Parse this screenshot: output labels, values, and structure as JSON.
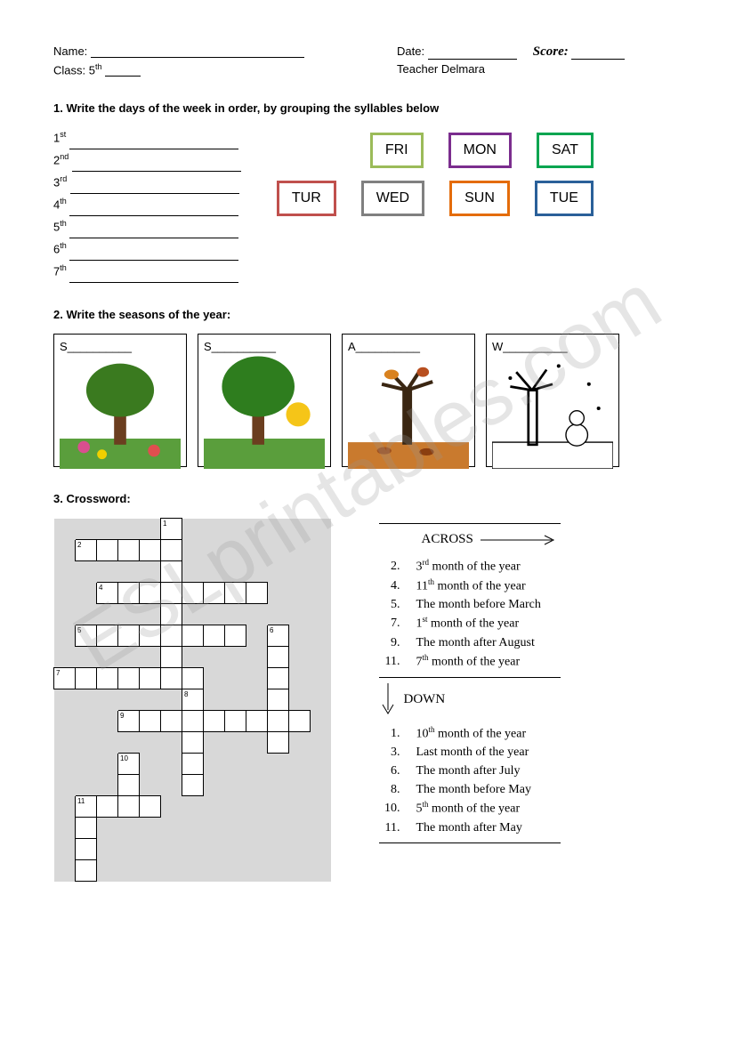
{
  "header": {
    "name_label": "Name:",
    "date_label": "Date:",
    "score_label": "Score:",
    "class_label": "Class:",
    "class_value": "5",
    "class_ordinal": "th",
    "teacher_label": "Teacher Delmara"
  },
  "watermark": "ESLprintables.com",
  "q1": {
    "title": "1. Write the days of the week in order, by grouping the syllables below",
    "ordinals": [
      {
        "n": "1",
        "suf": "st"
      },
      {
        "n": "2",
        "suf": "nd"
      },
      {
        "n": "3",
        "suf": "rd"
      },
      {
        "n": "4",
        "suf": "th"
      },
      {
        "n": "5",
        "suf": "th"
      },
      {
        "n": "6",
        "suf": "th"
      },
      {
        "n": "7",
        "suf": "th"
      }
    ],
    "boxes": [
      {
        "text": "FRI",
        "color": "#9bbb59"
      },
      {
        "text": "MON",
        "color": "#7b2d8e"
      },
      {
        "text": "SAT",
        "color": "#00a550"
      },
      {
        "text": "TUR",
        "color": "#c0504d"
      },
      {
        "text": "WED",
        "color": "#808080"
      },
      {
        "text": "SUN",
        "color": "#e46c0a"
      },
      {
        "text": "TUE",
        "color": "#2a6099"
      }
    ]
  },
  "q2": {
    "title": "2. Write the seasons of the year:",
    "cards": [
      {
        "hint": "S__________"
      },
      {
        "hint": "S__________"
      },
      {
        "hint": "A__________"
      },
      {
        "hint": "W__________"
      }
    ]
  },
  "q3": {
    "title": "3. Crossword:",
    "across_label": "ACROSS",
    "down_label": "DOWN",
    "across": [
      {
        "n": "2.",
        "text": "3rd month of the year",
        "ord": "rd",
        "pre": "3",
        "post": " month of the year"
      },
      {
        "n": "4.",
        "text": "11th month of the year",
        "ord": "th",
        "pre": "11",
        "post": " month of the year"
      },
      {
        "n": "5.",
        "text": "The month before March",
        "plain": true
      },
      {
        "n": "7.",
        "text": "1st month of the year",
        "ord": "st",
        "pre": "1",
        "post": " month of the year"
      },
      {
        "n": "9.",
        "text": "The month after August",
        "plain": true
      },
      {
        "n": "11.",
        "text": "7th month of the year",
        "ord": "th",
        "pre": "7",
        "post": " month of the year"
      }
    ],
    "down": [
      {
        "n": "1.",
        "text": "10th month of the year",
        "ord": "th",
        "pre": "10",
        "post": " month of the year"
      },
      {
        "n": "3.",
        "text": "Last month of the year",
        "plain": true
      },
      {
        "n": "6.",
        "text": "The month after July",
        "plain": true
      },
      {
        "n": "8.",
        "text": "The month before May",
        "plain": true
      },
      {
        "n": "10.",
        "text": "5th month of the year",
        "ord": "th",
        "pre": "5",
        "post": " month of the year"
      },
      {
        "n": "11.",
        "text": "The month after May",
        "plain": true
      }
    ],
    "grid": {
      "rows": 18,
      "cols": 14,
      "cells": [
        {
          "r": 0,
          "c": 5,
          "num": "1"
        },
        {
          "r": 1,
          "c": 1,
          "num": "2"
        },
        {
          "r": 1,
          "c": 2
        },
        {
          "r": 1,
          "c": 3
        },
        {
          "r": 1,
          "c": 4
        },
        {
          "r": 1,
          "c": 5
        },
        {
          "r": 2,
          "c": 5
        },
        {
          "r": 3,
          "c": 2,
          "num": "4"
        },
        {
          "r": 3,
          "c": 3
        },
        {
          "r": 3,
          "c": 4
        },
        {
          "r": 3,
          "c": 5
        },
        {
          "r": 3,
          "c": 6
        },
        {
          "r": 3,
          "c": 7
        },
        {
          "r": 3,
          "c": 8
        },
        {
          "r": 3,
          "c": 9
        },
        {
          "r": 4,
          "c": 5
        },
        {
          "r": 5,
          "c": 1,
          "num": "5"
        },
        {
          "r": 5,
          "c": 2
        },
        {
          "r": 5,
          "c": 3
        },
        {
          "r": 5,
          "c": 4
        },
        {
          "r": 5,
          "c": 5
        },
        {
          "r": 5,
          "c": 6
        },
        {
          "r": 5,
          "c": 7
        },
        {
          "r": 5,
          "c": 8
        },
        {
          "r": 5,
          "c": 10,
          "num": "6"
        },
        {
          "r": 6,
          "c": 5
        },
        {
          "r": 6,
          "c": 10
        },
        {
          "r": 7,
          "c": 0,
          "num": "7"
        },
        {
          "r": 7,
          "c": 1
        },
        {
          "r": 7,
          "c": 2
        },
        {
          "r": 7,
          "c": 3
        },
        {
          "r": 7,
          "c": 4
        },
        {
          "r": 7,
          "c": 5
        },
        {
          "r": 7,
          "c": 6
        },
        {
          "r": 7,
          "c": 10
        },
        {
          "r": 8,
          "c": 6,
          "num": "8"
        },
        {
          "r": 8,
          "c": 10
        },
        {
          "r": 9,
          "c": 3,
          "num": "9"
        },
        {
          "r": 9,
          "c": 4
        },
        {
          "r": 9,
          "c": 5
        },
        {
          "r": 9,
          "c": 6
        },
        {
          "r": 9,
          "c": 7
        },
        {
          "r": 9,
          "c": 8
        },
        {
          "r": 9,
          "c": 9
        },
        {
          "r": 9,
          "c": 10
        },
        {
          "r": 9,
          "c": 11
        },
        {
          "r": 10,
          "c": 6
        },
        {
          "r": 10,
          "c": 10
        },
        {
          "r": 11,
          "c": 3,
          "num": "10"
        },
        {
          "r": 11,
          "c": 6
        },
        {
          "r": 12,
          "c": 3
        },
        {
          "r": 12,
          "c": 6
        },
        {
          "r": 13,
          "c": 1,
          "num": "11"
        },
        {
          "r": 13,
          "c": 2
        },
        {
          "r": 13,
          "c": 3
        },
        {
          "r": 13,
          "c": 4
        },
        {
          "r": 14,
          "c": 1
        },
        {
          "r": 15,
          "c": 1
        },
        {
          "r": 16,
          "c": 1
        }
      ]
    }
  }
}
